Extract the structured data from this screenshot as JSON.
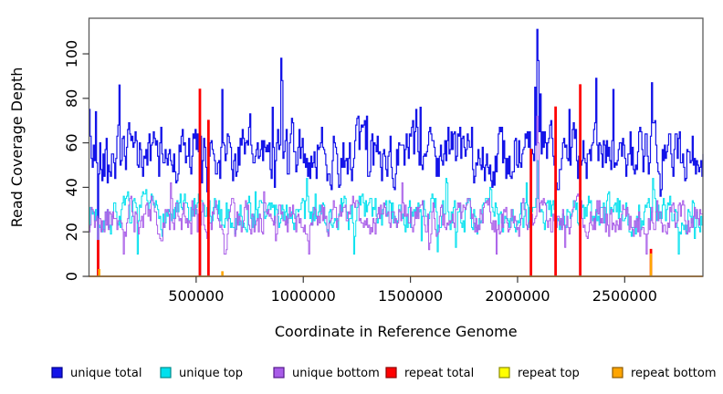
{
  "figure": {
    "background": "#ffffff",
    "frame_color": "#5a5a5a",
    "tick_color": "#3a3a3a",
    "text_color": "#000000"
  },
  "chart_data": {
    "type": "line",
    "variant": "step",
    "title": "",
    "xlabel": "Coordinate in Reference Genome",
    "ylabel": "Read Coverage Depth",
    "xlim": [
      0,
      2865000
    ],
    "ylim": [
      0,
      116
    ],
    "bin_size": 5000,
    "grid": false,
    "legend_position": "bottom",
    "xticks": [
      {
        "v": 500000,
        "label": "500000"
      },
      {
        "v": 1000000,
        "label": "1000000"
      },
      {
        "v": 1500000,
        "label": "1500000"
      },
      {
        "v": 2000000,
        "label": "2000000"
      },
      {
        "v": 2500000,
        "label": "2500000"
      }
    ],
    "yticks": [
      {
        "v": 0,
        "label": "0"
      },
      {
        "v": 20,
        "label": "20"
      },
      {
        "v": 40,
        "label": "40"
      },
      {
        "v": 60,
        "label": "60"
      },
      {
        "v": 80,
        "label": "80"
      },
      {
        "v": 100,
        "label": "100"
      }
    ],
    "series": [
      {
        "name": "unique total",
        "color": "#1414E8",
        "border_color": "#00008B",
        "seed": 42,
        "line_width": 1.2,
        "baseline": {
          "mean": 55,
          "sd": 10,
          "min": 36,
          "max": 78
        },
        "spikes": [
          [
            0,
            75
          ],
          [
            30000,
            74
          ],
          [
            141000,
            86
          ],
          [
            620000,
            84
          ],
          [
            748000,
            73
          ],
          [
            854000,
            76
          ],
          [
            897000,
            98
          ],
          [
            902000,
            88
          ],
          [
            1293000,
            72
          ],
          [
            1544000,
            76
          ],
          [
            2080000,
            85
          ],
          [
            2090000,
            111
          ],
          [
            2095000,
            97
          ],
          [
            2105000,
            82
          ],
          [
            2239000,
            75
          ],
          [
            2366000,
            89
          ],
          [
            2443000,
            84
          ],
          [
            2626000,
            87
          ]
        ],
        "gaps": [
          41000,
          515000,
          556000,
          2060000,
          2175000,
          2290000
        ]
      },
      {
        "name": "unique top",
        "color": "#00E0EE",
        "border_color": "#008B8B",
        "seed": 7,
        "line_width": 1.0,
        "baseline": {
          "mean": 28,
          "sd": 6.5,
          "min": 10,
          "max": 44
        },
        "spikes": [
          [
            2090000,
            52
          ]
        ],
        "gaps": [
          41000,
          515000,
          556000,
          2060000,
          2175000,
          2290000
        ]
      },
      {
        "name": "unique bottom",
        "color": "#A85CE8",
        "border_color": "#551A8B",
        "seed": 19,
        "line_width": 1.0,
        "baseline": {
          "mean": 26,
          "sd": 6.5,
          "min": 10,
          "max": 42
        },
        "spikes": [
          [
            2090000,
            72
          ],
          [
            2095000,
            60
          ]
        ],
        "gaps": [
          41000,
          515000,
          556000,
          2060000,
          2175000,
          2290000
        ]
      },
      {
        "name": "repeat total",
        "color": "#FF0000",
        "border_color": "#8B0000",
        "seed": 3,
        "line_width": 1.6,
        "baseline": {
          "mean": 0,
          "sd": 0,
          "min": 0,
          "max": 0
        },
        "spikes": [
          [
            41000,
            16
          ],
          [
            515000,
            84
          ],
          [
            556000,
            70
          ],
          [
            2060000,
            57
          ],
          [
            2175000,
            76
          ],
          [
            2290000,
            86
          ],
          [
            2620000,
            12
          ]
        ],
        "gaps": []
      },
      {
        "name": "repeat top",
        "color": "#FFFF00",
        "border_color": "#8B8B00",
        "seed": 4,
        "line_width": 1.2,
        "baseline": {
          "mean": 0,
          "sd": 0,
          "min": 0,
          "max": 0
        },
        "spikes": [],
        "gaps": []
      },
      {
        "name": "repeat bottom",
        "color": "#FFA500",
        "border_color": "#8B5A00",
        "seed": 5,
        "line_width": 1.4,
        "baseline": {
          "mean": 0,
          "sd": 0,
          "min": 0,
          "max": 0
        },
        "spikes": [
          [
            44000,
            3
          ],
          [
            620000,
            2
          ],
          [
            2620000,
            10
          ]
        ],
        "gaps": []
      }
    ]
  }
}
